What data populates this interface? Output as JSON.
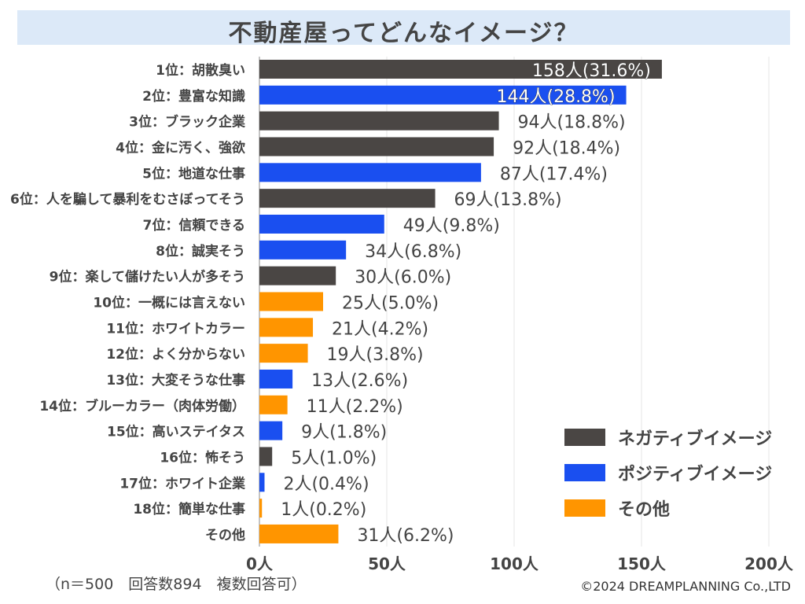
{
  "chart_data": {
    "type": "bar",
    "orientation": "horizontal",
    "title": "不動産屋ってどんなイメージ？",
    "categories": [
      "1位：胡散臭い",
      "2位：豊富な知識",
      "3位：ブラック企業",
      "4位：金に汚く、強欲",
      "5位：地道な仕事",
      "6位：人を騙して暴利をむさぼってそう",
      "7位：信頼できる",
      "8位：誠実そう",
      "9位：楽して儲けたい人が多そう",
      "10位：一概には言えない",
      "11位：ホワイトカラー",
      "12位：よく分からない",
      "13位：大変そうな仕事",
      "14位：ブルーカラー（肉体労働）",
      "15位：高いステイタス",
      "16位：怖そう",
      "17位：ホワイト企業",
      "18位：簡単な仕事",
      "その他"
    ],
    "values": [
      158,
      144,
      94,
      92,
      87,
      69,
      49,
      34,
      30,
      25,
      21,
      19,
      13,
      11,
      9,
      5,
      2,
      1,
      31
    ],
    "percents": [
      "31.6%",
      "28.8%",
      "18.8%",
      "18.4%",
      "17.4%",
      "13.8%",
      "9.8%",
      "6.8%",
      "6.0%",
      "5.0%",
      "4.2%",
      "3.8%",
      "2.6%",
      "2.2%",
      "1.8%",
      "1.0%",
      "0.4%",
      "0.2%",
      "6.2%"
    ],
    "data_labels": [
      "158人(31.6%)",
      "144人(28.8%)",
      "94人(18.8%)",
      "92人(18.4%)",
      "87人(17.4%)",
      "69人(13.8%)",
      "49人(9.8%)",
      "34人(6.8%)",
      "30人(6.0%)",
      "25人(5.0%)",
      "21人(4.2%)",
      "19人(3.8%)",
      "13人(2.6%)",
      "11人(2.2%)",
      "9人(1.8%)",
      "5人(1.0%)",
      "2人(0.4%)",
      "1人(0.2%)",
      "31人(6.2%)"
    ],
    "groups": [
      "neg",
      "pos",
      "neg",
      "neg",
      "pos",
      "neg",
      "pos",
      "pos",
      "neg",
      "other",
      "other",
      "other",
      "pos",
      "other",
      "pos",
      "neg",
      "pos",
      "other",
      "other"
    ],
    "legend": [
      {
        "key": "neg",
        "name": "ネガティブイメージ",
        "color": "#4a4644"
      },
      {
        "key": "pos",
        "name": "ポジティブイメージ",
        "color": "#1a4ff0"
      },
      {
        "key": "other",
        "name": "その他",
        "color": "#ff9500"
      }
    ],
    "legend_position": "bottom-right",
    "xlim": [
      0,
      200
    ],
    "xticks": [
      0,
      50,
      100,
      150,
      200
    ],
    "xtick_labels": [
      "0人",
      "50人",
      "100人",
      "150人",
      "200人"
    ],
    "grid": "vertical"
  },
  "note": "（n＝500　回答数894　複数回答可）",
  "copyright": "©2024 DREAMPLANNING Co.,LTD"
}
